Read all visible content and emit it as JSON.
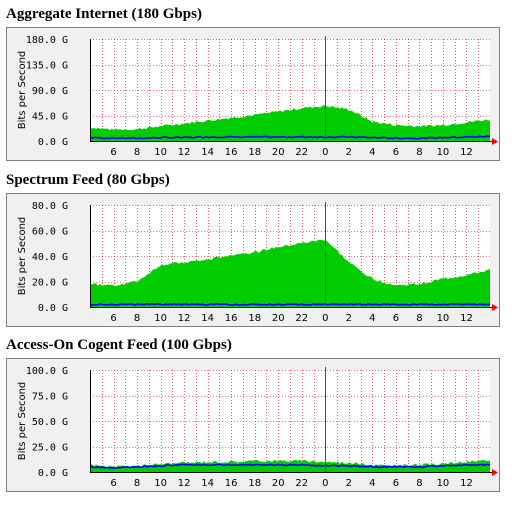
{
  "colors": {
    "frame_bg": "#f0f0f0",
    "plot_bg": "#ffffff",
    "grid": "#c00000",
    "in_fill": "#00cc00",
    "out_line": "#0000ff",
    "now_line": "#ff0000",
    "arrow": "#ff0000",
    "text": "#000000"
  },
  "chart_data": [
    {
      "type": "area",
      "title": "Aggregate Internet (180 Gbps)",
      "ylabel": "Bits per Second",
      "yticks": [
        "0.0 G",
        "45.0 G",
        "90.0 G",
        "135.0 G",
        "180.0 G"
      ],
      "ylim": [
        0,
        180
      ],
      "unit": "G",
      "xticks": [
        "6",
        "8",
        "10",
        "12",
        "14",
        "16",
        "18",
        "20",
        "22",
        "0",
        "2",
        "4",
        "6",
        "8",
        "10",
        "12"
      ],
      "x_hours": [
        4,
        6,
        8,
        10,
        12,
        14,
        16,
        18,
        20,
        22,
        24,
        26,
        28,
        30,
        32,
        34,
        36,
        38
      ],
      "series": [
        {
          "values": [
            24,
            20,
            21,
            26,
            31,
            36,
            41,
            46,
            52,
            58,
            62,
            56,
            34,
            28,
            26,
            28,
            33,
            38
          ]
        },
        {
          "values": [
            6,
            5,
            5,
            6,
            6,
            7,
            7,
            7,
            7,
            7,
            7,
            7,
            6,
            5,
            5,
            6,
            7,
            8
          ]
        }
      ]
    },
    {
      "type": "area",
      "title": "Spectrum Feed (80 Gbps)",
      "ylabel": "Bits per Second",
      "yticks": [
        "0.0 G",
        "20.0 G",
        "40.0 G",
        "60.0 G",
        "80.0 G"
      ],
      "ylim": [
        0,
        80
      ],
      "unit": "G",
      "xticks": [
        "6",
        "8",
        "10",
        "12",
        "14",
        "16",
        "18",
        "20",
        "22",
        "0",
        "2",
        "4",
        "6",
        "8",
        "10",
        "12"
      ],
      "x_hours": [
        4,
        6,
        8,
        10,
        12,
        14,
        16,
        18,
        20,
        22,
        24,
        26,
        28,
        30,
        32,
        34,
        36,
        38
      ],
      "series": [
        {
          "values": [
            18,
            17,
            20,
            33,
            35,
            37,
            41,
            43,
            47,
            50,
            53,
            35,
            22,
            17,
            18,
            22,
            25,
            29
          ]
        },
        {
          "values": [
            2,
            2,
            2,
            2,
            2,
            2,
            2,
            2,
            2,
            2,
            2,
            2,
            2,
            2,
            2,
            2,
            2,
            2
          ]
        }
      ]
    },
    {
      "type": "area",
      "title": "Access-On Cogent Feed (100 Gbps)",
      "ylabel": "Bits per Second",
      "yticks": [
        "0.0 G",
        "25.0 G",
        "50.0 G",
        "75.0 G",
        "100.0 G"
      ],
      "ylim": [
        0,
        100
      ],
      "unit": "G",
      "xticks": [
        "6",
        "8",
        "10",
        "12",
        "14",
        "16",
        "18",
        "20",
        "22",
        "0",
        "2",
        "4",
        "6",
        "8",
        "10",
        "12"
      ],
      "x_hours": [
        4,
        6,
        8,
        10,
        12,
        14,
        16,
        18,
        20,
        22,
        24,
        26,
        28,
        30,
        32,
        34,
        36,
        38
      ],
      "series": [
        {
          "values": [
            7,
            5,
            6,
            8,
            9,
            10,
            10,
            11,
            11,
            11,
            10,
            9,
            7,
            6,
            7,
            8,
            10,
            11
          ]
        },
        {
          "values": [
            5,
            4,
            5,
            6,
            7,
            7,
            7,
            7,
            7,
            7,
            6,
            6,
            5,
            5,
            5,
            6,
            7,
            7
          ]
        }
      ]
    }
  ]
}
